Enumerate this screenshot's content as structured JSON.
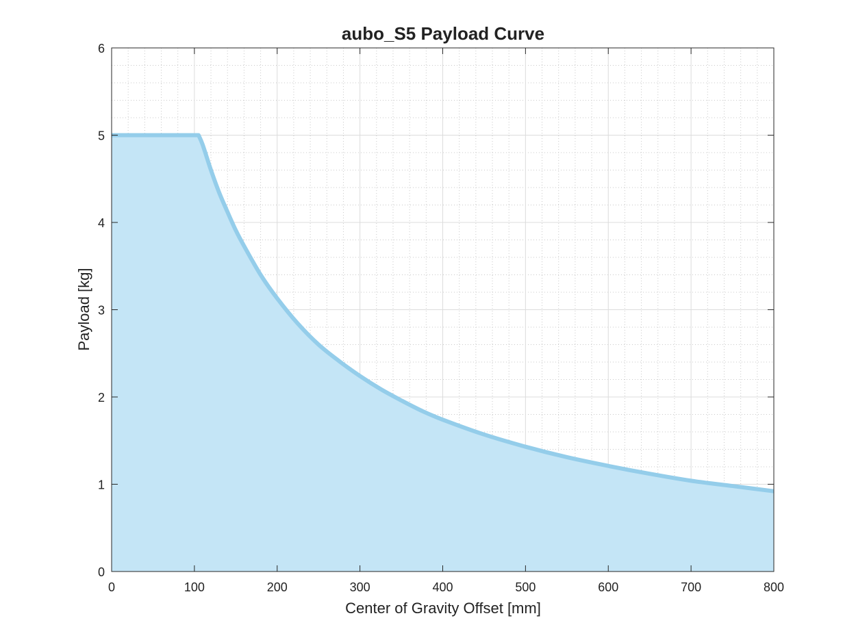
{
  "chart_data": {
    "type": "area",
    "title": "aubo_S5 Payload Curve",
    "xlabel": "Center of Gravity Offset [mm]",
    "ylabel": "Payload [kg]",
    "xlim": [
      0,
      800
    ],
    "ylim": [
      0,
      6
    ],
    "xticks": [
      "0",
      "100",
      "200",
      "300",
      "400",
      "500",
      "600",
      "700",
      "800"
    ],
    "yticks": [
      "0",
      "1",
      "2",
      "3",
      "4",
      "5",
      "6"
    ],
    "grid": true,
    "minor_grid": true,
    "colors": {
      "fill": "#c4e5f6",
      "line": "#94cdea",
      "axis": "#262626",
      "grid_major": "#dcdcdc",
      "grid_minor": "#c8c8c8"
    },
    "series": [
      {
        "x": [
          0,
          105,
          110,
          120,
          130,
          140,
          150,
          160,
          180,
          200,
          225,
          250,
          275,
          300,
          325,
          350,
          375,
          400,
          450,
          500,
          550,
          600,
          650,
          700,
          750,
          800
        ],
        "values": [
          5.0,
          5.0,
          4.89,
          4.6,
          4.34,
          4.12,
          3.91,
          3.73,
          3.4,
          3.13,
          2.84,
          2.6,
          2.41,
          2.24,
          2.09,
          1.96,
          1.84,
          1.74,
          1.57,
          1.43,
          1.31,
          1.21,
          1.12,
          1.04,
          0.98,
          0.92
        ]
      }
    ]
  }
}
